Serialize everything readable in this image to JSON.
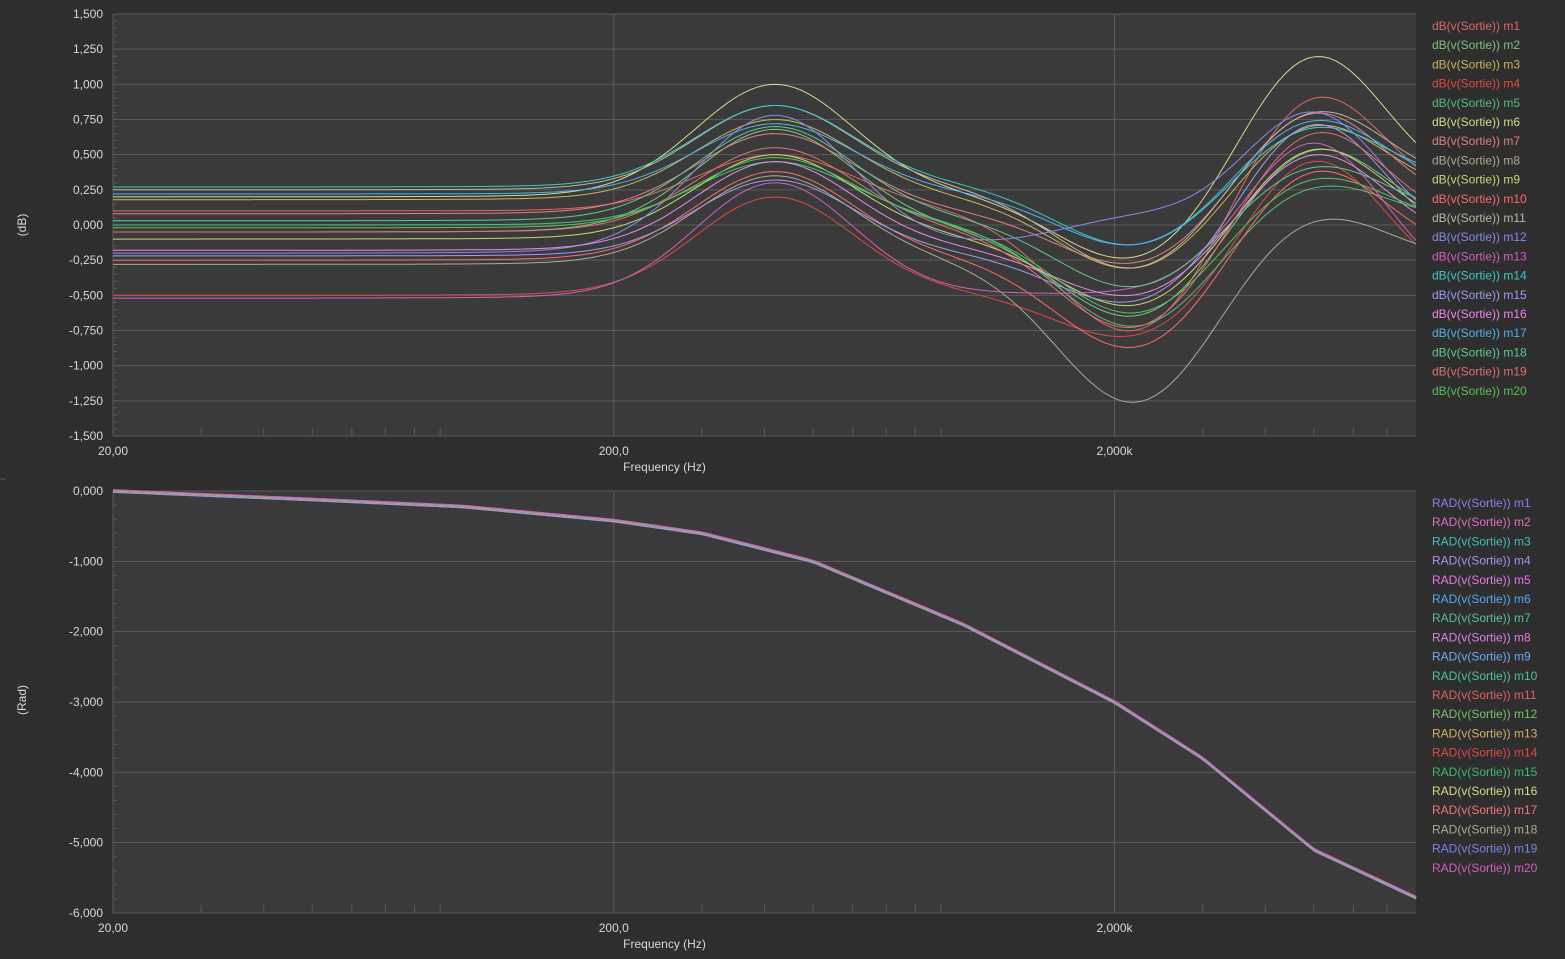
{
  "colors": {
    "background": "#2e2e2e",
    "plot_background": "#3a3a3a",
    "grid": "#5a5a5a",
    "text": "#d8d8d8"
  },
  "chart_data": [
    {
      "type": "line",
      "id": "magnitude",
      "xscale": "log",
      "xlim": [
        20,
        8000
      ],
      "ylim": [
        -1.5,
        1.5
      ],
      "xlabel": "Frequency (Hz)",
      "ylabel": "(dB)",
      "xtick_labels": [
        {
          "x": 20,
          "label": "20,00"
        },
        {
          "x": 200,
          "label": "200,0"
        },
        {
          "x": 2000,
          "label": "2,000k"
        }
      ],
      "ytick_labels": [
        "1,500",
        "1,250",
        "1,000",
        "0,750",
        "0,500",
        "0,250",
        "0,000",
        "-0,250",
        "-0,500",
        "-0,750",
        "-1,000",
        "-1,250",
        "-1,500"
      ],
      "ytick_values": [
        1.5,
        1.25,
        1.0,
        0.75,
        0.5,
        0.25,
        0,
        -0.25,
        -0.5,
        -0.75,
        -1.0,
        -1.25,
        -1.5
      ],
      "legend_position": "right",
      "series": [
        {
          "name": "dB(v(Sortie)) m1",
          "color": "#e06666",
          "values": [
            0.1,
            0.5,
            -0.8,
            0.95
          ]
        },
        {
          "name": "dB(v(Sortie)) m2",
          "color": "#7ac67a",
          "values": [
            -0.05,
            0.68,
            -0.7,
            0.55
          ]
        },
        {
          "name": "dB(v(Sortie)) m3",
          "color": "#c8b45a",
          "values": [
            0.18,
            0.75,
            -0.35,
            0.72
          ]
        },
        {
          "name": "dB(v(Sortie)) m4",
          "color": "#e04848",
          "values": [
            -0.5,
            0.2,
            -0.85,
            0.45
          ]
        },
        {
          "name": "dB(v(Sortie)) m5",
          "color": "#4ec07a",
          "values": [
            0.0,
            0.45,
            -0.75,
            0.3
          ]
        },
        {
          "name": "dB(v(Sortie)) m6",
          "color": "#d8d890",
          "values": [
            0.2,
            1.0,
            -0.3,
            1.2
          ]
        },
        {
          "name": "dB(v(Sortie)) m7",
          "color": "#e08080",
          "values": [
            0.08,
            0.65,
            -0.32,
            0.8
          ]
        },
        {
          "name": "dB(v(Sortie)) m8",
          "color": "#b0a890",
          "values": [
            -0.28,
            0.35,
            -1.3,
            0.07
          ]
        },
        {
          "name": "dB(v(Sortie)) m9",
          "color": "#c8d870",
          "values": [
            -0.1,
            0.5,
            -0.62,
            0.55
          ]
        },
        {
          "name": "dB(v(Sortie)) m10",
          "color": "#ff6a6a",
          "values": [
            -0.25,
            0.38,
            -0.92,
            0.4
          ]
        },
        {
          "name": "dB(v(Sortie)) m11",
          "color": "#b8b8a0",
          "values": [
            0.25,
            0.85,
            -0.35,
            0.82
          ]
        },
        {
          "name": "dB(v(Sortie)) m12",
          "color": "#8888ee",
          "values": [
            -0.2,
            0.78,
            0.0,
            0.75
          ]
        },
        {
          "name": "dB(v(Sortie)) m13",
          "color": "#d060c0",
          "values": [
            -0.52,
            0.3,
            -0.52,
            0.55
          ]
        },
        {
          "name": "dB(v(Sortie)) m14",
          "color": "#40c8c8",
          "values": [
            0.27,
            0.85,
            -0.18,
            0.7
          ]
        },
        {
          "name": "dB(v(Sortie)) m15",
          "color": "#9c9cf0",
          "values": [
            -0.22,
            0.32,
            -0.6,
            0.72
          ]
        },
        {
          "name": "dB(v(Sortie)) m16",
          "color": "#ee88ee",
          "values": [
            -0.18,
            0.45,
            -0.55,
            0.5
          ]
        },
        {
          "name": "dB(v(Sortie)) m17",
          "color": "#50b0f0",
          "values": [
            0.22,
            0.72,
            -0.18,
            0.75
          ]
        },
        {
          "name": "dB(v(Sortie)) m18",
          "color": "#60c890",
          "values": [
            0.03,
            0.7,
            -0.48,
            0.42
          ]
        },
        {
          "name": "dB(v(Sortie)) m19",
          "color": "#e07070",
          "values": [
            -0.05,
            0.55,
            -0.78,
            0.68
          ]
        },
        {
          "name": "dB(v(Sortie)) m20",
          "color": "#58c058",
          "values": [
            -0.02,
            0.48,
            -0.66,
            0.35
          ]
        }
      ]
    },
    {
      "type": "line",
      "id": "phase",
      "xscale": "log",
      "xlim": [
        20,
        8000
      ],
      "ylim": [
        -6,
        0
      ],
      "xlabel": "Frequency (Hz)",
      "ylabel": "(Rad)",
      "xtick_labels": [
        {
          "x": 20,
          "label": "20,00"
        },
        {
          "x": 200,
          "label": "200,0"
        },
        {
          "x": 2000,
          "label": "2,000k"
        }
      ],
      "ytick_labels": [
        "0,000",
        "-1,000",
        "-2,000",
        "-3,000",
        "-4,000",
        "-5,000",
        "-6,000"
      ],
      "ytick_values": [
        0,
        -1,
        -2,
        -3,
        -4,
        -5,
        -6
      ],
      "legend_position": "right",
      "x": [
        20,
        50,
        100,
        200,
        300,
        500,
        1000,
        2000,
        3000,
        5000,
        8000
      ],
      "values": [
        0,
        -0.12,
        -0.22,
        -0.42,
        -0.6,
        -1.0,
        -1.9,
        -3.0,
        -3.8,
        -5.1,
        -5.78
      ],
      "series": [
        {
          "name": "RAD(v(Sortie)) m1",
          "color": "#8a80e8"
        },
        {
          "name": "RAD(v(Sortie)) m2",
          "color": "#e070c0"
        },
        {
          "name": "RAD(v(Sortie)) m3",
          "color": "#40c0c0"
        },
        {
          "name": "RAD(v(Sortie)) m4",
          "color": "#a890f0"
        },
        {
          "name": "RAD(v(Sortie)) m5",
          "color": "#e878e8"
        },
        {
          "name": "RAD(v(Sortie)) m6",
          "color": "#58a8f0"
        },
        {
          "name": "RAD(v(Sortie)) m7",
          "color": "#58c098"
        },
        {
          "name": "RAD(v(Sortie)) m8",
          "color": "#e080e0"
        },
        {
          "name": "RAD(v(Sortie)) m9",
          "color": "#70a8f0"
        },
        {
          "name": "RAD(v(Sortie)) m10",
          "color": "#50c0a0"
        },
        {
          "name": "RAD(v(Sortie)) m11",
          "color": "#e06060"
        },
        {
          "name": "RAD(v(Sortie)) m12",
          "color": "#78c070"
        },
        {
          "name": "RAD(v(Sortie)) m13",
          "color": "#c8b460"
        },
        {
          "name": "RAD(v(Sortie)) m14",
          "color": "#e04848"
        },
        {
          "name": "RAD(v(Sortie)) m15",
          "color": "#40b870"
        },
        {
          "name": "RAD(v(Sortie)) m16",
          "color": "#d8d888"
        },
        {
          "name": "RAD(v(Sortie)) m17",
          "color": "#f07878"
        },
        {
          "name": "RAD(v(Sortie)) m18",
          "color": "#b0a890"
        },
        {
          "name": "RAD(v(Sortie)) m19",
          "color": "#8080f0"
        },
        {
          "name": "RAD(v(Sortie)) m20",
          "color": "#d060c0"
        }
      ]
    }
  ]
}
